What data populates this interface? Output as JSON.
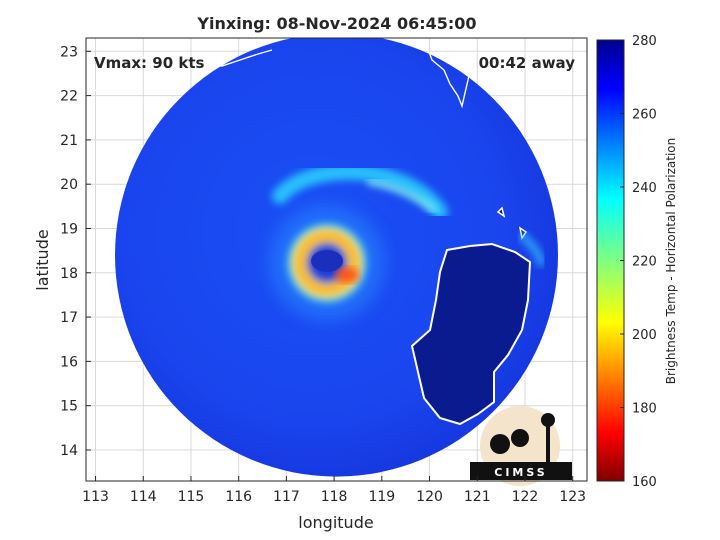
{
  "chart_data": {
    "type": "heatmap",
    "title": "Yinxing: 08-Nov-2024 06:45:00",
    "xlabel": "longitude",
    "ylabel": "latitude",
    "xlim": [
      112.8,
      123.3
    ],
    "ylim": [
      13.3,
      23.3
    ],
    "xticks": [
      113,
      114,
      115,
      116,
      117,
      118,
      119,
      120,
      121,
      122,
      123
    ],
    "yticks": [
      14,
      15,
      16,
      17,
      18,
      19,
      20,
      21,
      22,
      23
    ],
    "grid": true,
    "annotations": {
      "vmax": "Vmax: 90 kts",
      "time_away": "00:42 away"
    },
    "storm_center": {
      "lon": 117.95,
      "lat": 18.3
    },
    "swath": {
      "center_lon": 118.05,
      "center_lat": 18.4,
      "radius_deg": 5.0
    },
    "colorbar": {
      "label": "Brightness Temp - Horizontal Polarization",
      "range": [
        160,
        280
      ],
      "ticks": [
        160,
        180,
        200,
        220,
        240,
        260,
        280
      ],
      "colormap": "jet"
    },
    "features": {
      "eyewall_min_temp": 188,
      "background_temp": 262,
      "land_temp": 276
    }
  },
  "logo": {
    "text": "CIMSS"
  }
}
